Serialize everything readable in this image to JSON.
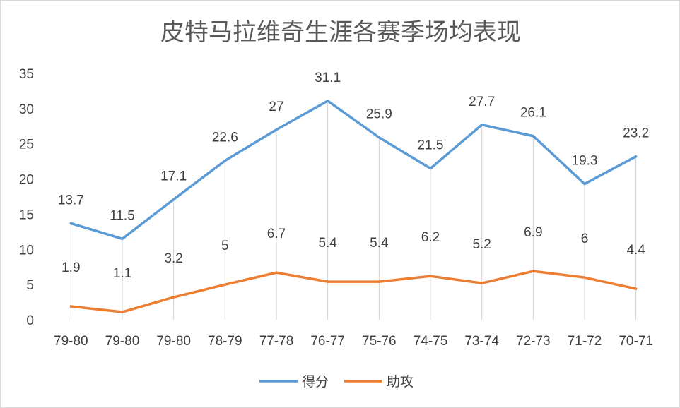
{
  "chart_data": {
    "type": "line",
    "title": "皮特马拉维奇生涯各赛季场均表现",
    "categories": [
      "79-80",
      "79-80",
      "79-80",
      "78-79",
      "77-78",
      "76-77",
      "75-76",
      "74-75",
      "73-74",
      "72-73",
      "71-72",
      "70-71"
    ],
    "series": [
      {
        "name": "得分",
        "color": "#5b9bd5",
        "values": [
          13.7,
          11.5,
          17.1,
          22.6,
          27,
          31.1,
          25.9,
          21.5,
          27.7,
          26.1,
          19.3,
          23.2
        ]
      },
      {
        "name": "助攻",
        "color": "#ed7d31",
        "values": [
          1.9,
          1.1,
          3.2,
          5,
          6.7,
          5.4,
          5.4,
          6.2,
          5.2,
          6.9,
          6,
          4.4
        ]
      }
    ],
    "ylim": [
      0,
      35
    ],
    "yticks": [
      0,
      5,
      10,
      15,
      20,
      25,
      30,
      35
    ],
    "grid": "vertical drop lines",
    "legend": "bottom-center"
  }
}
